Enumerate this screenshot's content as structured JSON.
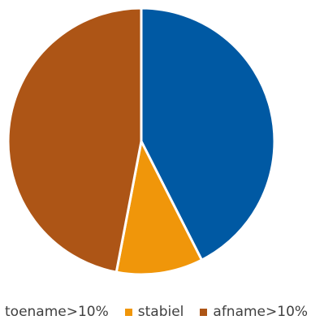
{
  "chart_data": {
    "type": "pie",
    "title": "",
    "categories": [
      "toename>10%",
      "stabiel",
      "afname>10%"
    ],
    "values": [
      42.5,
      10.5,
      47.0
    ],
    "colors": [
      "#0059a3",
      "#f0960a",
      "#ad5516"
    ],
    "start_angle_deg": 0,
    "direction": "clockwise",
    "legend_position": "bottom"
  }
}
